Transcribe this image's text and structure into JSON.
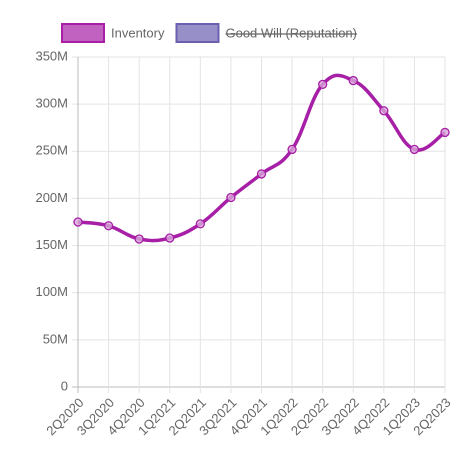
{
  "chart_data": {
    "type": "line",
    "categories": [
      "2Q2020",
      "3Q2020",
      "4Q2020",
      "1Q2021",
      "2Q2021",
      "3Q2021",
      "4Q2021",
      "1Q2022",
      "2Q2022",
      "3Q2022",
      "4Q2022",
      "1Q2023",
      "2Q2023"
    ],
    "series": [
      {
        "name": "Inventory",
        "color": "#a61fa6",
        "values": [
          175000000,
          171000000,
          157000000,
          158000000,
          173000000,
          201000000,
          226000000,
          252000000,
          321000000,
          325000000,
          293000000,
          252000000,
          270000000
        ]
      },
      {
        "name": "Good Will (Reputation)",
        "color": "#6a5fb0",
        "hidden": true
      }
    ],
    "ylim": [
      0,
      350000000
    ],
    "yticks": [
      {
        "value": 0,
        "label": "0"
      },
      {
        "value": 50000000,
        "label": "50M"
      },
      {
        "value": 100000000,
        "label": "100M"
      },
      {
        "value": 150000000,
        "label": "150M"
      },
      {
        "value": 200000000,
        "label": "200M"
      },
      {
        "value": 250000000,
        "label": "250M"
      },
      {
        "value": 300000000,
        "label": "300M"
      },
      {
        "value": 350000000,
        "label": "350M"
      }
    ],
    "grid": true,
    "smooth": true
  }
}
